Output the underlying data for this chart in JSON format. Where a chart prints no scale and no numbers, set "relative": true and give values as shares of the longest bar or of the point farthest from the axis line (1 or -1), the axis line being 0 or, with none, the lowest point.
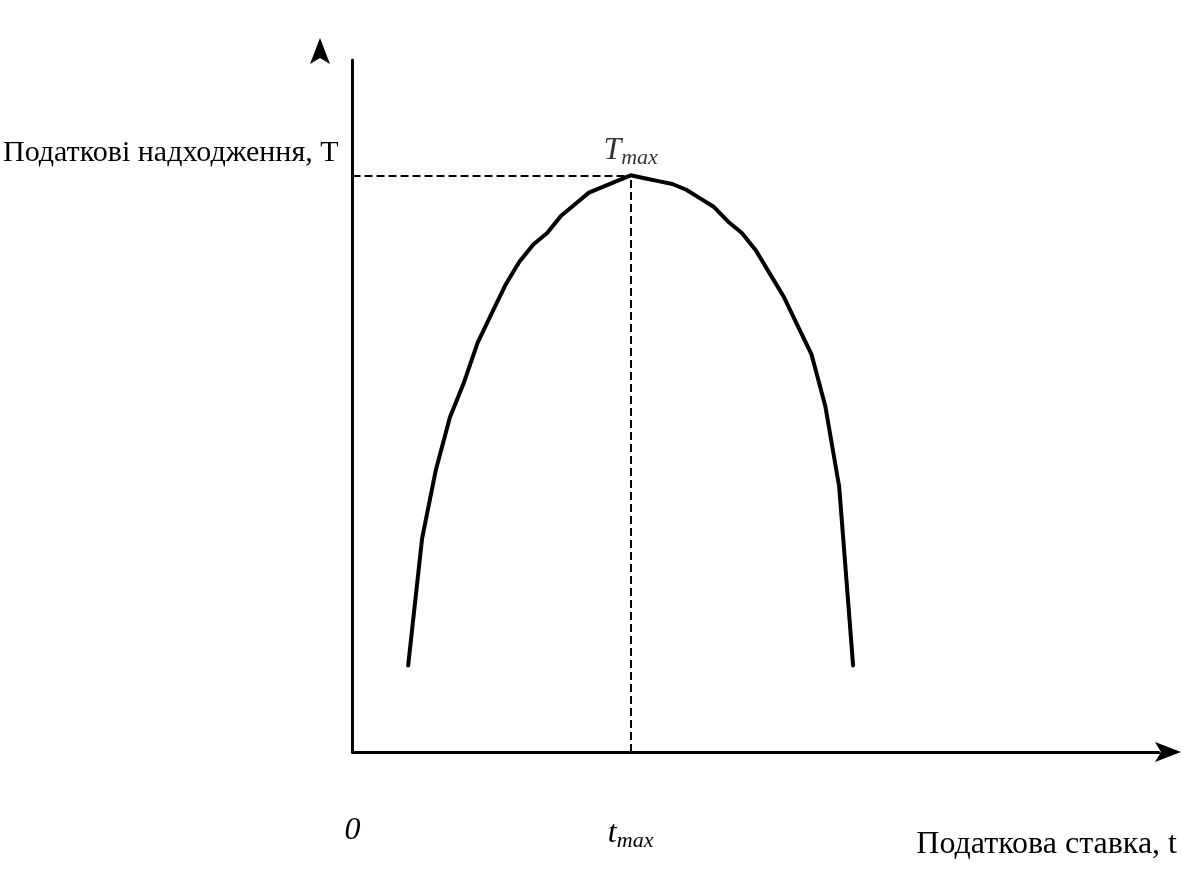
{
  "chart_data": {
    "type": "line",
    "relative": true,
    "xlabel": "Податкова ставка, t",
    "ylabel": "Податкові надходження, T",
    "categories": [
      "0",
      null,
      null,
      null,
      null,
      null,
      null,
      null,
      null,
      null,
      null,
      null,
      null,
      null,
      null,
      null,
      null,
      null,
      null,
      null,
      "t$_{max}$",
      null,
      null,
      null,
      null,
      null,
      null,
      null,
      null,
      null,
      null,
      null,
      null,
      null,
      null,
      null,
      null,
      null,
      null,
      null,
      null,
      null,
      null,
      null,
      null,
      null,
      null,
      null,
      null,
      null,
      null,
      null,
      null,
      null,
      null,
      null,
      null,
      null,
      null
    ],
    "series": [
      {
        "color": "#000000",
        "values": [
          null,
          null,
          null,
          null,
          0.15,
          0.37,
          0.49,
          0.58,
          0.64,
          0.71,
          0.76,
          0.81,
          0.85,
          0.88,
          0.9,
          0.93,
          0.95,
          0.97,
          0.98,
          0.99,
          1,
          0.995,
          0.99,
          0.985,
          0.975,
          0.96,
          0.945,
          0.92,
          0.9,
          0.87,
          0.83,
          0.79,
          0.74,
          0.69,
          0.6,
          0.46,
          0.15,
          null,
          null,
          null,
          null,
          null,
          null,
          null,
          null,
          null,
          null,
          null,
          null,
          null,
          null,
          null,
          null,
          null,
          null,
          null,
          null,
          null,
          null
        ]
      }
    ],
    "ref_lines": [
      {
        "axis": "x",
        "value": "t$_{max}$",
        "line_style": "dashed",
        "color": "#000000"
      },
      {
        "axis": "y",
        "value": 1,
        "line_style": "dashed",
        "color": "#000000"
      }
    ],
    "annotations": [
      {
        "text": "T$_{max}$",
        "x": "t$_{max}$",
        "y": 1
      }
    ],
    "grid": false,
    "marker": "none",
    "line_style": "solid"
  }
}
